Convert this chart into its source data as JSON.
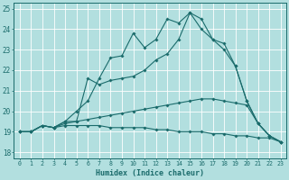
{
  "xlabel": "Humidex (Indice chaleur)",
  "bg_color": "#b2dfdf",
  "grid_color": "#ffffff",
  "line_color": "#1a6b6b",
  "xlim": [
    0,
    23
  ],
  "ylim": [
    18,
    25
  ],
  "xticks": [
    0,
    1,
    2,
    3,
    4,
    5,
    6,
    7,
    8,
    9,
    10,
    11,
    12,
    13,
    14,
    15,
    16,
    17,
    18,
    19,
    20,
    21,
    22,
    23
  ],
  "yticks": [
    18,
    19,
    20,
    21,
    22,
    23,
    24,
    25
  ],
  "series": [
    {
      "x": [
        0,
        1,
        2,
        3,
        4,
        5,
        6,
        7,
        8,
        9,
        10,
        11,
        12,
        13,
        14,
        15,
        16,
        17,
        18,
        19,
        20,
        21,
        22,
        23
      ],
      "y": [
        19.0,
        19.0,
        19.3,
        19.2,
        19.5,
        20.0,
        20.5,
        21.6,
        22.6,
        22.7,
        23.8,
        23.1,
        23.5,
        24.5,
        24.3,
        24.8,
        24.5,
        23.5,
        23.3,
        22.2,
        20.5,
        19.4,
        18.8,
        18.5
      ]
    },
    {
      "x": [
        0,
        1,
        2,
        3,
        4,
        5,
        6,
        7,
        8,
        9,
        10,
        11,
        12,
        13,
        14,
        15,
        16,
        17,
        18,
        19,
        20,
        21,
        22,
        23
      ],
      "y": [
        19.0,
        19.0,
        19.3,
        19.2,
        19.5,
        19.5,
        21.6,
        21.3,
        21.5,
        21.6,
        21.7,
        22.0,
        22.5,
        22.8,
        23.5,
        24.8,
        24.0,
        23.5,
        23.0,
        22.2,
        20.5,
        19.4,
        18.8,
        18.5
      ]
    },
    {
      "x": [
        0,
        1,
        2,
        3,
        4,
        5,
        6,
        7,
        8,
        9,
        10,
        11,
        12,
        13,
        14,
        15,
        16,
        17,
        18,
        19,
        20,
        21,
        22,
        23
      ],
      "y": [
        19.0,
        19.0,
        19.3,
        19.2,
        19.4,
        19.5,
        19.6,
        19.7,
        19.8,
        19.9,
        20.0,
        20.1,
        20.2,
        20.3,
        20.4,
        20.5,
        20.6,
        20.6,
        20.5,
        20.4,
        20.3,
        19.4,
        18.8,
        18.5
      ]
    },
    {
      "x": [
        0,
        1,
        2,
        3,
        4,
        5,
        6,
        7,
        8,
        9,
        10,
        11,
        12,
        13,
        14,
        15,
        16,
        17,
        18,
        19,
        20,
        21,
        22,
        23
      ],
      "y": [
        19.0,
        19.0,
        19.3,
        19.2,
        19.3,
        19.3,
        19.3,
        19.3,
        19.2,
        19.2,
        19.2,
        19.2,
        19.1,
        19.1,
        19.0,
        19.0,
        19.0,
        18.9,
        18.9,
        18.8,
        18.8,
        18.7,
        18.7,
        18.5
      ]
    }
  ]
}
